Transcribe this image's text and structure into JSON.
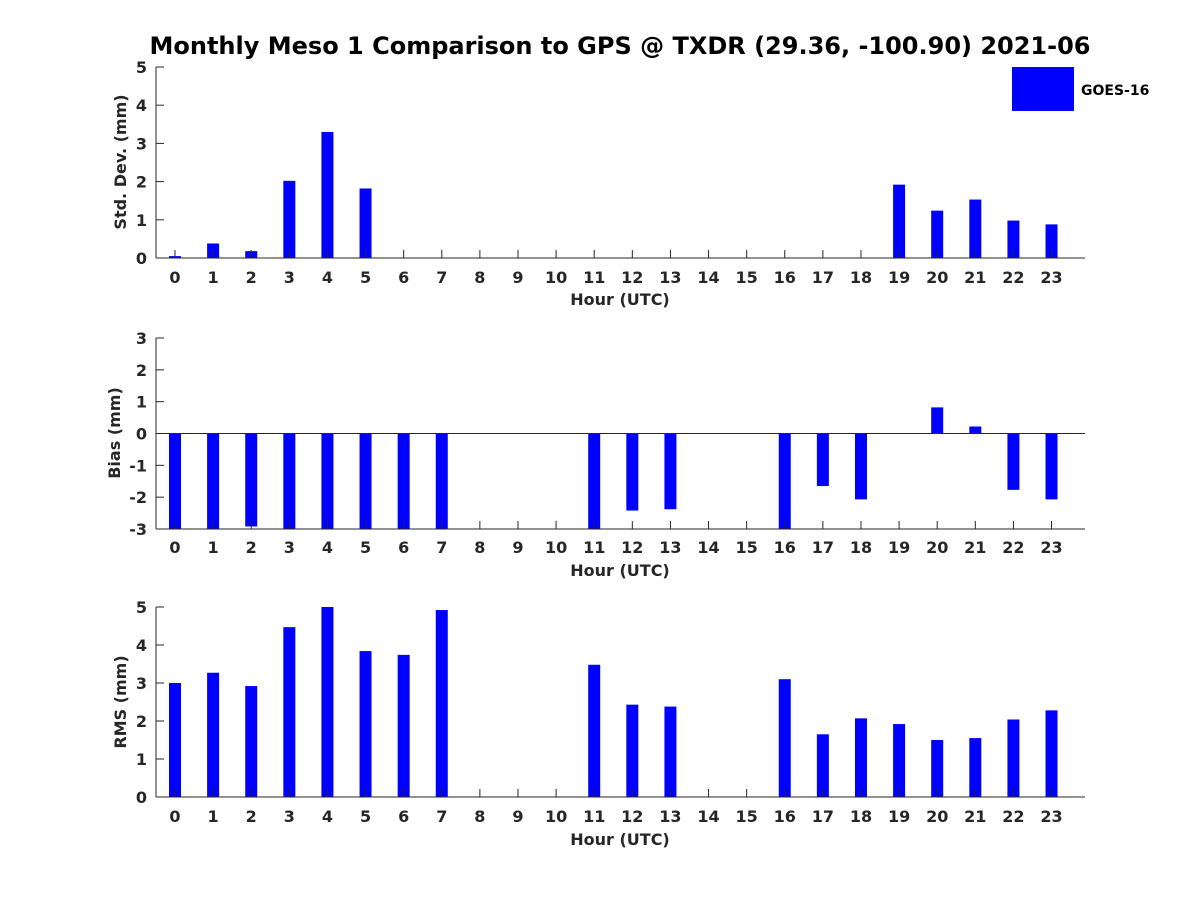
{
  "title": "Monthly Meso 1 Comparison to GPS @ TXDR (29.36, -100.90) 2021-06",
  "colors": {
    "bar": "#0000ff",
    "axis": "#262626"
  },
  "legend": {
    "label": "GOES-16",
    "placement": "top-right"
  },
  "chart_data": [
    {
      "type": "bar",
      "xlabel": "Hour (UTC)",
      "ylabel": "Std. Dev. (mm)",
      "ylim": [
        0,
        5
      ],
      "yticks": [
        "0",
        "1",
        "2",
        "3",
        "4",
        "5"
      ],
      "categories": [
        "0",
        "1",
        "2",
        "3",
        "4",
        "5",
        "6",
        "7",
        "8",
        "9",
        "10",
        "11",
        "12",
        "13",
        "14",
        "15",
        "16",
        "17",
        "18",
        "19",
        "20",
        "21",
        "22",
        "23"
      ],
      "series": [
        {
          "name": "GOES-16",
          "values": [
            0.05,
            0.38,
            0.18,
            2.02,
            3.3,
            1.82,
            null,
            null,
            null,
            null,
            null,
            null,
            null,
            null,
            null,
            null,
            null,
            null,
            null,
            1.92,
            1.24,
            1.53,
            0.98,
            0.88
          ]
        }
      ]
    },
    {
      "type": "bar",
      "xlabel": "Hour (UTC)",
      "ylabel": "Bias (mm)",
      "ylim": [
        -3,
        3
      ],
      "yticks": [
        "-3",
        "-2",
        "-1",
        "0",
        "1",
        "2",
        "3"
      ],
      "categories": [
        "0",
        "1",
        "2",
        "3",
        "4",
        "5",
        "6",
        "7",
        "8",
        "9",
        "10",
        "11",
        "12",
        "13",
        "14",
        "15",
        "16",
        "17",
        "18",
        "19",
        "20",
        "21",
        "22",
        "23"
      ],
      "series": [
        {
          "name": "GOES-16",
          "values": [
            -3,
            -3,
            -2.92,
            -3,
            -3,
            -3,
            -3,
            -3,
            null,
            null,
            null,
            -3,
            -2.42,
            -2.38,
            null,
            null,
            -3,
            -1.65,
            -2.07,
            null,
            0.82,
            0.22,
            -1.77,
            -2.07
          ]
        }
      ]
    },
    {
      "type": "bar",
      "xlabel": "Hour (UTC)",
      "ylabel": "RMS (mm)",
      "ylim": [
        0,
        5
      ],
      "yticks": [
        "0",
        "1",
        "2",
        "3",
        "4",
        "5"
      ],
      "categories": [
        "0",
        "1",
        "2",
        "3",
        "4",
        "5",
        "6",
        "7",
        "8",
        "9",
        "10",
        "11",
        "12",
        "13",
        "14",
        "15",
        "16",
        "17",
        "18",
        "19",
        "20",
        "21",
        "22",
        "23"
      ],
      "series": [
        {
          "name": "GOES-16",
          "values": [
            3.0,
            3.27,
            2.92,
            4.47,
            5.0,
            3.84,
            3.74,
            4.92,
            null,
            null,
            null,
            3.48,
            2.43,
            2.38,
            null,
            null,
            3.1,
            1.65,
            2.07,
            1.92,
            1.5,
            1.55,
            2.04,
            2.28
          ]
        }
      ]
    }
  ]
}
